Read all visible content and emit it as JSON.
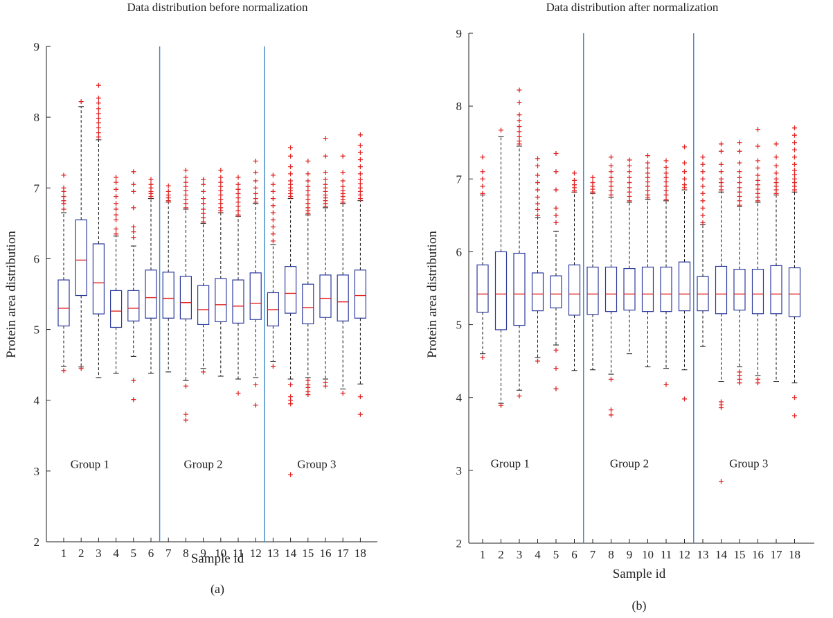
{
  "panels": [
    {
      "panel_label": "(a)",
      "title": "Data distribution before normalization",
      "chart_data": {
        "type": "boxplot",
        "title": "Data distribution before normalization",
        "xlabel": "Sample id",
        "ylabel": "Protein area distribution",
        "ylim": [
          2,
          9
        ],
        "yticks": [
          2,
          3,
          4,
          5,
          6,
          7,
          8,
          9
        ],
        "categories": [
          "1",
          "2",
          "3",
          "4",
          "5",
          "6",
          "7",
          "8",
          "9",
          "10",
          "11",
          "12",
          "13",
          "14",
          "15",
          "16",
          "17",
          "18"
        ],
        "group_separators_after": [
          6,
          12
        ],
        "group_labels": [
          {
            "text": "Group 1",
            "center_sample": 2.5,
            "y": 3.1
          },
          {
            "text": "Group 2",
            "center_sample": 9,
            "y": 3.1
          },
          {
            "text": "Group 3",
            "center_sample": 15.5,
            "y": 3.1
          }
        ],
        "boxes": [
          {
            "q1": 5.05,
            "median": 5.3,
            "q3": 5.7,
            "lower_whisker": 4.48,
            "upper_whisker": 6.65,
            "outliers": [
              4.42,
              6.7,
              6.78,
              6.82,
              6.88,
              6.95,
              7.0,
              7.18
            ]
          },
          {
            "q1": 5.48,
            "median": 5.98,
            "q3": 6.55,
            "lower_whisker": 4.47,
            "upper_whisker": 8.15,
            "outliers": [
              4.45,
              8.22
            ]
          },
          {
            "q1": 5.22,
            "median": 5.66,
            "q3": 6.21,
            "lower_whisker": 4.32,
            "upper_whisker": 7.68,
            "outliers": [
              7.72,
              7.78,
              7.85,
              7.92,
              7.98,
              8.05,
              8.12,
              8.2,
              8.27,
              8.45
            ]
          },
          {
            "q1": 5.03,
            "median": 5.26,
            "q3": 5.55,
            "lower_whisker": 4.38,
            "upper_whisker": 6.32,
            "outliers": [
              6.35,
              6.42,
              6.55,
              6.62,
              6.7,
              6.78,
              6.88,
              6.98,
              7.08,
              7.15
            ]
          },
          {
            "q1": 5.12,
            "median": 5.3,
            "q3": 5.55,
            "lower_whisker": 4.62,
            "upper_whisker": 6.18,
            "outliers": [
              4.01,
              4.28,
              6.3,
              6.38,
              6.45,
              6.72,
              6.95,
              7.05,
              7.23
            ]
          },
          {
            "q1": 5.16,
            "median": 5.45,
            "q3": 5.84,
            "lower_whisker": 4.38,
            "upper_whisker": 6.85,
            "outliers": [
              6.88,
              6.92,
              6.95,
              7.0,
              7.05,
              7.12
            ]
          },
          {
            "q1": 5.16,
            "median": 5.44,
            "q3": 5.81,
            "lower_whisker": 4.4,
            "upper_whisker": 6.8,
            "outliers": [
              6.82,
              6.86,
              6.9,
              6.95,
              7.03
            ]
          },
          {
            "q1": 5.15,
            "median": 5.38,
            "q3": 5.75,
            "lower_whisker": 4.28,
            "upper_whisker": 6.7,
            "outliers": [
              3.72,
              3.8,
              4.2,
              6.72,
              6.78,
              6.84,
              6.9,
              6.96,
              7.02,
              7.08,
              7.15,
              7.25
            ]
          },
          {
            "q1": 5.07,
            "median": 5.28,
            "q3": 5.62,
            "lower_whisker": 4.45,
            "upper_whisker": 6.5,
            "outliers": [
              4.4,
              6.52,
              6.58,
              6.64,
              6.7,
              6.78,
              6.85,
              6.95,
              7.05,
              7.12
            ]
          },
          {
            "q1": 5.11,
            "median": 5.35,
            "q3": 5.72,
            "lower_whisker": 4.34,
            "upper_whisker": 6.65,
            "outliers": [
              6.68,
              6.72,
              6.78,
              6.84,
              6.9,
              6.96,
              7.02,
              7.08,
              7.15,
              7.25
            ]
          },
          {
            "q1": 5.09,
            "median": 5.33,
            "q3": 5.7,
            "lower_whisker": 4.3,
            "upper_whisker": 6.6,
            "outliers": [
              4.1,
              6.62,
              6.68,
              6.74,
              6.8,
              6.86,
              6.92,
              6.98,
              7.05,
              7.15
            ]
          },
          {
            "q1": 5.14,
            "median": 5.37,
            "q3": 5.8,
            "lower_whisker": 4.32,
            "upper_whisker": 6.78,
            "outliers": [
              3.93,
              4.22,
              6.8,
              6.85,
              6.92,
              7.0,
              7.1,
              7.22,
              7.38
            ]
          },
          {
            "q1": 5.05,
            "median": 5.28,
            "q3": 5.52,
            "lower_whisker": 4.55,
            "upper_whisker": 6.2,
            "outliers": [
              4.48,
              6.25,
              6.35,
              6.45,
              6.55,
              6.65,
              6.75,
              6.85,
              6.95,
              7.05,
              7.18
            ]
          },
          {
            "q1": 5.23,
            "median": 5.51,
            "q3": 5.89,
            "lower_whisker": 4.3,
            "upper_whisker": 6.85,
            "outliers": [
              2.95,
              3.95,
              4.0,
              4.05,
              4.22,
              6.88,
              6.92,
              6.96,
              7.0,
              7.05,
              7.1,
              7.2,
              7.3,
              7.45,
              7.57
            ]
          },
          {
            "q1": 5.08,
            "median": 5.31,
            "q3": 5.64,
            "lower_whisker": 4.32,
            "upper_whisker": 6.62,
            "outliers": [
              4.08,
              4.12,
              4.18,
              4.22,
              4.28,
              6.64,
              6.68,
              6.72,
              6.78,
              6.84,
              6.9,
              6.96,
              7.02,
              7.1,
              7.2,
              7.38
            ]
          },
          {
            "q1": 5.17,
            "median": 5.44,
            "q3": 5.77,
            "lower_whisker": 4.3,
            "upper_whisker": 6.72,
            "outliers": [
              4.2,
              4.25,
              6.74,
              6.78,
              6.82,
              6.86,
              6.9,
              6.95,
              7.0,
              7.05,
              7.12,
              7.22,
              7.45,
              7.7
            ]
          },
          {
            "q1": 5.12,
            "median": 5.39,
            "q3": 5.77,
            "lower_whisker": 4.16,
            "upper_whisker": 6.78,
            "outliers": [
              4.1,
              6.8,
              6.84,
              6.88,
              6.92,
              6.96,
              7.02,
              7.1,
              7.22,
              7.45
            ]
          },
          {
            "q1": 5.16,
            "median": 5.48,
            "q3": 5.84,
            "lower_whisker": 4.23,
            "upper_whisker": 6.82,
            "outliers": [
              3.8,
              4.05,
              6.85,
              6.9,
              6.95,
              7.0,
              7.06,
              7.12,
              7.2,
              7.3,
              7.4,
              7.5,
              7.6,
              7.75
            ]
          }
        ]
      }
    },
    {
      "panel_label": "(b)",
      "title": "Data distribution after normalization",
      "chart_data": {
        "type": "boxplot",
        "title": "Data distribution after normalization",
        "xlabel": "Sample id",
        "ylabel": "Protein area distribution",
        "ylim": [
          2,
          9
        ],
        "yticks": [
          2,
          3,
          4,
          5,
          6,
          7,
          8,
          9
        ],
        "categories": [
          "1",
          "2",
          "3",
          "4",
          "5",
          "6",
          "7",
          "8",
          "9",
          "10",
          "11",
          "12",
          "13",
          "14",
          "15",
          "16",
          "17",
          "18"
        ],
        "group_separators_after": [
          6,
          12
        ],
        "group_labels": [
          {
            "text": "Group 1",
            "center_sample": 2.5,
            "y": 3.1
          },
          {
            "text": "Group 2",
            "center_sample": 9,
            "y": 3.1
          },
          {
            "text": "Group 3",
            "center_sample": 15.5,
            "y": 3.1
          }
        ],
        "boxes": [
          {
            "q1": 5.17,
            "median": 5.42,
            "q3": 5.82,
            "lower_whisker": 4.6,
            "upper_whisker": 6.78,
            "outliers": [
              4.55,
              6.8,
              6.9,
              7.0,
              7.1,
              7.3
            ]
          },
          {
            "q1": 4.93,
            "median": 5.42,
            "q3": 6.0,
            "lower_whisker": 3.92,
            "upper_whisker": 7.58,
            "outliers": [
              3.89,
              7.67
            ]
          },
          {
            "q1": 4.99,
            "median": 5.42,
            "q3": 5.98,
            "lower_whisker": 4.1,
            "upper_whisker": 7.45,
            "outliers": [
              4.02,
              7.48,
              7.52,
              7.58,
              7.65,
              7.72,
              7.8,
              7.88,
              8.05,
              8.22
            ]
          },
          {
            "q1": 5.19,
            "median": 5.42,
            "q3": 5.71,
            "lower_whisker": 4.55,
            "upper_whisker": 6.47,
            "outliers": [
              4.5,
              6.5,
              6.58,
              6.66,
              6.75,
              6.85,
              6.95,
              7.05,
              7.18,
              7.28
            ]
          },
          {
            "q1": 5.23,
            "median": 5.42,
            "q3": 5.67,
            "lower_whisker": 4.72,
            "upper_whisker": 6.28,
            "outliers": [
              4.12,
              4.4,
              4.65,
              6.4,
              6.5,
              6.6,
              6.85,
              7.1,
              7.35
            ]
          },
          {
            "q1": 5.13,
            "median": 5.42,
            "q3": 5.82,
            "lower_whisker": 4.37,
            "upper_whisker": 6.82,
            "outliers": [
              6.84,
              6.88,
              6.92,
              6.98,
              7.08
            ]
          },
          {
            "q1": 5.14,
            "median": 5.42,
            "q3": 5.79,
            "lower_whisker": 4.38,
            "upper_whisker": 6.8,
            "outliers": [
              6.82,
              6.86,
              6.9,
              6.95,
              7.02
            ]
          },
          {
            "q1": 5.18,
            "median": 5.42,
            "q3": 5.79,
            "lower_whisker": 4.32,
            "upper_whisker": 6.75,
            "outliers": [
              3.76,
              3.83,
              4.25,
              6.78,
              6.84,
              6.9,
              6.96,
              7.02,
              7.1,
              7.18,
              7.3
            ]
          },
          {
            "q1": 5.2,
            "median": 5.42,
            "q3": 5.77,
            "lower_whisker": 4.6,
            "upper_whisker": 6.68,
            "outliers": [
              6.7,
              6.76,
              6.82,
              6.88,
              6.95,
              7.02,
              7.1,
              7.18,
              7.26
            ]
          },
          {
            "q1": 5.18,
            "median": 5.42,
            "q3": 5.79,
            "lower_whisker": 4.42,
            "upper_whisker": 6.72,
            "outliers": [
              6.74,
              6.78,
              6.84,
              6.9,
              6.96,
              7.02,
              7.08,
              7.15,
              7.22,
              7.32
            ]
          },
          {
            "q1": 5.18,
            "median": 5.42,
            "q3": 5.79,
            "lower_whisker": 4.4,
            "upper_whisker": 6.7,
            "outliers": [
              4.18,
              6.72,
              6.78,
              6.84,
              6.9,
              6.96,
              7.02,
              7.08,
              7.16,
              7.25
            ]
          },
          {
            "q1": 5.19,
            "median": 5.42,
            "q3": 5.86,
            "lower_whisker": 4.38,
            "upper_whisker": 6.85,
            "outliers": [
              3.98,
              6.88,
              6.92,
              7.0,
              7.1,
              7.22,
              7.44
            ]
          },
          {
            "q1": 5.19,
            "median": 5.42,
            "q3": 5.66,
            "lower_whisker": 4.7,
            "upper_whisker": 6.37,
            "outliers": [
              6.4,
              6.5,
              6.6,
              6.7,
              6.8,
              6.9,
              7.0,
              7.1,
              7.2,
              7.3
            ]
          },
          {
            "q1": 5.15,
            "median": 5.42,
            "q3": 5.8,
            "lower_whisker": 4.22,
            "upper_whisker": 6.82,
            "outliers": [
              2.85,
              3.86,
              3.9,
              3.94,
              6.85,
              6.9,
              6.95,
              7.0,
              7.1,
              7.2,
              7.38,
              7.48
            ]
          },
          {
            "q1": 5.2,
            "median": 5.42,
            "q3": 5.76,
            "lower_whisker": 4.42,
            "upper_whisker": 6.62,
            "outliers": [
              4.2,
              4.25,
              4.3,
              4.35,
              6.64,
              6.7,
              6.76,
              6.82,
              6.88,
              6.95,
              7.02,
              7.1,
              7.22,
              7.38,
              7.5
            ]
          },
          {
            "q1": 5.15,
            "median": 5.42,
            "q3": 5.76,
            "lower_whisker": 4.3,
            "upper_whisker": 6.68,
            "outliers": [
              4.2,
              4.25,
              6.7,
              6.75,
              6.8,
              6.86,
              6.92,
              6.98,
              7.05,
              7.15,
              7.25,
              7.45,
              7.68
            ]
          },
          {
            "q1": 5.15,
            "median": 5.42,
            "q3": 5.81,
            "lower_whisker": 4.22,
            "upper_whisker": 6.78,
            "outliers": [
              6.8,
              6.85,
              6.9,
              6.95,
              7.0,
              7.08,
              7.18,
              7.3,
              7.48
            ]
          },
          {
            "q1": 5.11,
            "median": 5.42,
            "q3": 5.78,
            "lower_whisker": 4.2,
            "upper_whisker": 6.82,
            "outliers": [
              3.75,
              4.0,
              6.85,
              6.9,
              6.95,
              7.0,
              7.06,
              7.12,
              7.2,
              7.3,
              7.4,
              7.5,
              7.6,
              7.7
            ]
          }
        ]
      }
    }
  ]
}
